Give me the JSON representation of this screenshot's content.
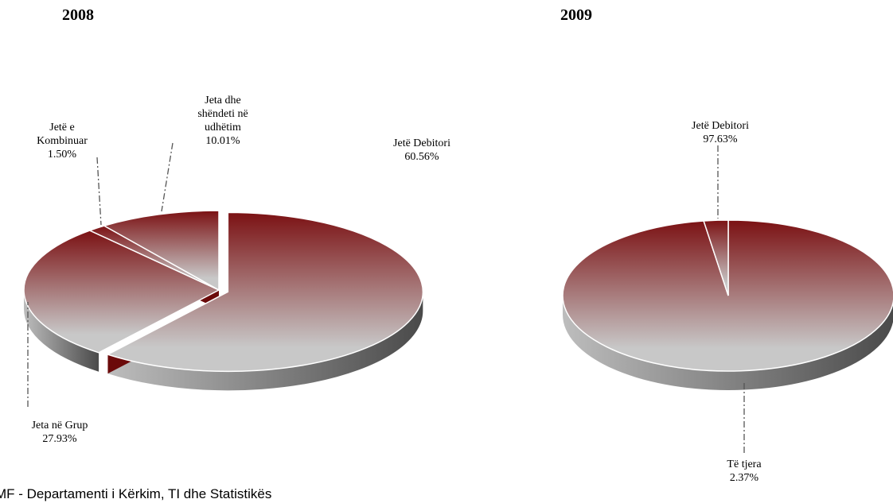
{
  "chart_data": [
    {
      "type": "pie",
      "title": "2008",
      "color": "#7b1113",
      "categories": [
        "Jetë Debitori",
        "Jeta në Grup",
        "Jetë e Kombinuar",
        "Jeta dhe shëndeti në udhëtim"
      ],
      "values": [
        60.56,
        27.93,
        1.5,
        10.01
      ],
      "value_labels": [
        "60.56%",
        "27.93%",
        "1.50%",
        "10.01%"
      ]
    },
    {
      "type": "pie",
      "title": "2009",
      "color": "#7b1113",
      "categories": [
        "Jetë Debitori",
        "Të tjera"
      ],
      "values": [
        97.63,
        2.37
      ],
      "value_labels": [
        "97.63%",
        "2.37%"
      ]
    }
  ],
  "source": "MF - Departamenti i Kërkim, TI dhe Statistikës"
}
